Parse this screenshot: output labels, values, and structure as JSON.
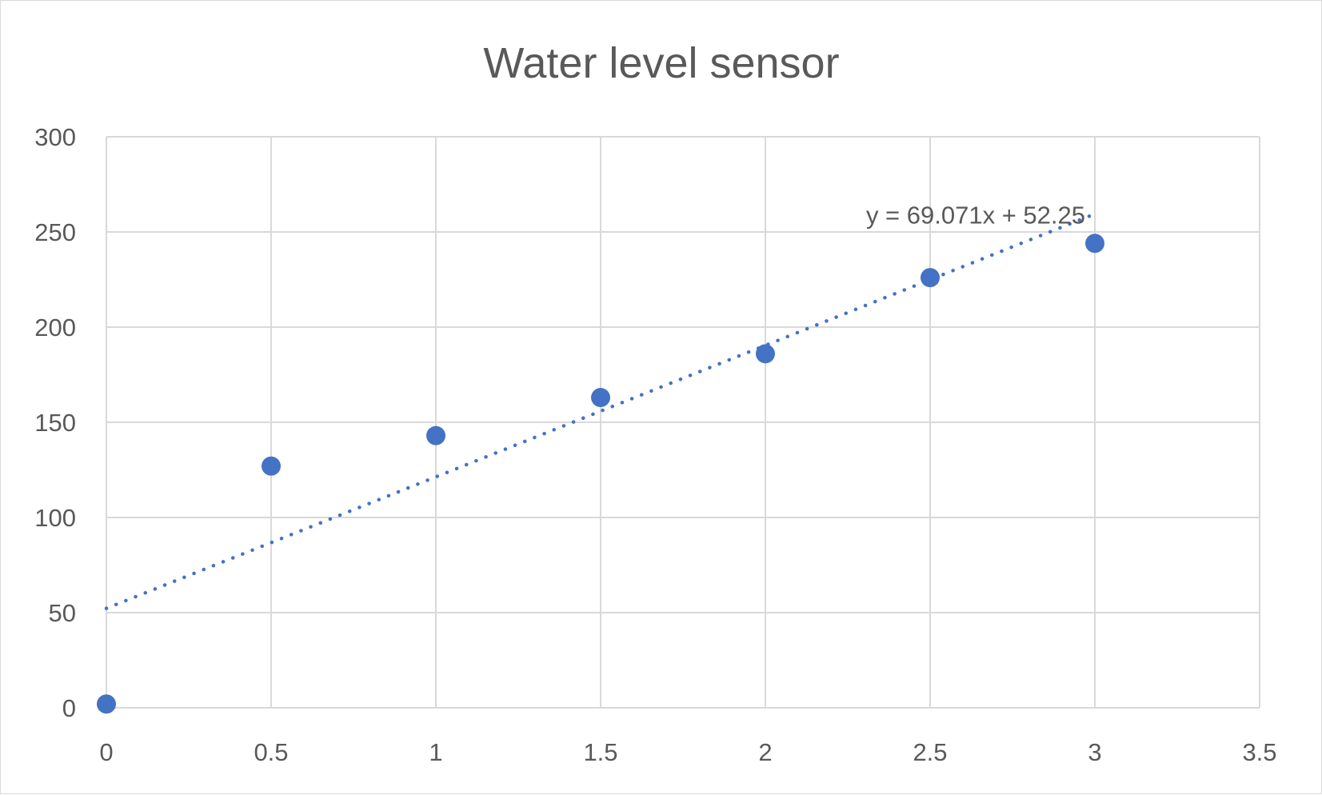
{
  "chart_data": {
    "type": "scatter",
    "title": "Water level sensor",
    "xlabel": "",
    "ylabel": "",
    "xlim": [
      0,
      3.5
    ],
    "ylim": [
      0,
      300
    ],
    "x_ticks": [
      "0",
      "0.5",
      "1",
      "1.5",
      "2",
      "2.5",
      "3",
      "3.5"
    ],
    "y_ticks": [
      "0",
      "50",
      "100",
      "150",
      "200",
      "250",
      "300"
    ],
    "grid": true,
    "series": [
      {
        "color": "#4472c4",
        "points": [
          {
            "x": 0,
            "y": 2
          },
          {
            "x": 0.5,
            "y": 127
          },
          {
            "x": 1,
            "y": 143
          },
          {
            "x": 1.5,
            "y": 163
          },
          {
            "x": 2,
            "y": 186
          },
          {
            "x": 2.5,
            "y": 226
          },
          {
            "x": 3,
            "y": 244
          }
        ]
      }
    ],
    "trendline": {
      "type": "linear",
      "style": "dotted",
      "slope": 69.071,
      "intercept": 52.25,
      "x_range": [
        0,
        3
      ],
      "equation_label": "y = 69.071x + 52.25",
      "color": "#4472c4"
    }
  }
}
